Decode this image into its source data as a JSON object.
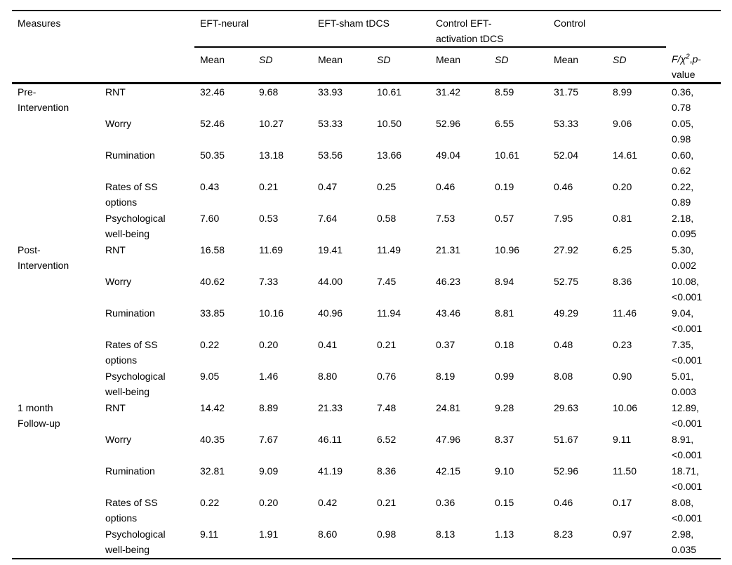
{
  "table": {
    "measures_header": "Measures",
    "groups": [
      "EFT-neural",
      "EFT-sham tDCS",
      "Control EFT-activation tDCS",
      "Control"
    ],
    "mean_label": "Mean",
    "sd_label": "SD",
    "stat_header": {
      "prefix": "F/χ",
      "sup": "2",
      "comma": ",",
      "p": "p",
      "hyphen": "-",
      "line2": "value"
    },
    "sections": [
      {
        "label": "Pre-Intervention",
        "rows": [
          {
            "measure": "RNT",
            "values": [
              "32.46",
              "9.68",
              "33.93",
              "10.61",
              "31.42",
              "8.59",
              "31.75",
              "8.99"
            ],
            "stat": "0.36,",
            "p": "0.78"
          },
          {
            "measure": "Worry",
            "values": [
              "52.46",
              "10.27",
              "53.33",
              "10.50",
              "52.96",
              "6.55",
              "53.33",
              "9.06"
            ],
            "stat": "0.05,",
            "p": "0.98"
          },
          {
            "measure": "Rumination",
            "values": [
              "50.35",
              "13.18",
              "53.56",
              "13.66",
              "49.04",
              "10.61",
              "52.04",
              "14.61"
            ],
            "stat": "0.60,",
            "p": "0.62"
          },
          {
            "measure": "Rates of SS options",
            "values": [
              "0.43",
              "0.21",
              "0.47",
              "0.25",
              "0.46",
              "0.19",
              "0.46",
              "0.20"
            ],
            "stat": "0.22,",
            "p": "0.89"
          },
          {
            "measure": "Psychological well-being",
            "values": [
              "7.60",
              "0.53",
              "7.64",
              "0.58",
              "7.53",
              "0.57",
              "7.95",
              "0.81"
            ],
            "stat": "2.18,",
            "p": "0.095"
          }
        ]
      },
      {
        "label": "Post-Intervention",
        "rows": [
          {
            "measure": "RNT",
            "values": [
              "16.58",
              "11.69",
              "19.41",
              "11.49",
              "21.31",
              "10.96",
              "27.92",
              "6.25"
            ],
            "stat": "5.30,",
            "p": "0.002"
          },
          {
            "measure": "Worry",
            "values": [
              "40.62",
              "7.33",
              "44.00",
              "7.45",
              "46.23",
              "8.94",
              "52.75",
              "8.36"
            ],
            "stat": "10.08,",
            "p": "<0.001"
          },
          {
            "measure": "Rumination",
            "values": [
              "33.85",
              "10.16",
              "40.96",
              "11.94",
              "43.46",
              "8.81",
              "49.29",
              "11.46"
            ],
            "stat": "9.04,",
            "p": "<0.001"
          },
          {
            "measure": "Rates of SS options",
            "values": [
              "0.22",
              "0.20",
              "0.41",
              "0.21",
              "0.37",
              "0.18",
              "0.48",
              "0.23"
            ],
            "stat": "7.35,",
            "p": "<0.001"
          },
          {
            "measure": "Psychological well-being",
            "values": [
              "9.05",
              "1.46",
              "8.80",
              "0.76",
              "8.19",
              "0.99",
              "8.08",
              "0.90"
            ],
            "stat": "5.01,",
            "p": "0.003"
          }
        ]
      },
      {
        "label": "1 month Follow-up",
        "rows": [
          {
            "measure": "RNT",
            "values": [
              "14.42",
              "8.89",
              "21.33",
              "7.48",
              "24.81",
              "9.28",
              "29.63",
              "10.06"
            ],
            "stat": "12.89,",
            "p": "<0.001"
          },
          {
            "measure": "Worry",
            "values": [
              "40.35",
              "7.67",
              "46.11",
              "6.52",
              "47.96",
              "8.37",
              "51.67",
              "9.11"
            ],
            "stat": "8.91,",
            "p": "<0.001"
          },
          {
            "measure": "Rumination",
            "values": [
              "32.81",
              "9.09",
              "41.19",
              "8.36",
              "42.15",
              "9.10",
              "52.96",
              "11.50"
            ],
            "stat": "18.71,",
            "p": "<0.001"
          },
          {
            "measure": "Rates of SS options",
            "values": [
              "0.22",
              "0.20",
              "0.42",
              "0.21",
              "0.36",
              "0.15",
              "0.46",
              "0.17"
            ],
            "stat": "8.08,",
            "p": "<0.001"
          },
          {
            "measure": "Psychological well-being",
            "values": [
              "9.11",
              "1.91",
              "8.60",
              "0.98",
              "8.13",
              "1.13",
              "8.23",
              "0.97"
            ],
            "stat": "2.98,",
            "p": "0.035"
          }
        ]
      }
    ]
  }
}
